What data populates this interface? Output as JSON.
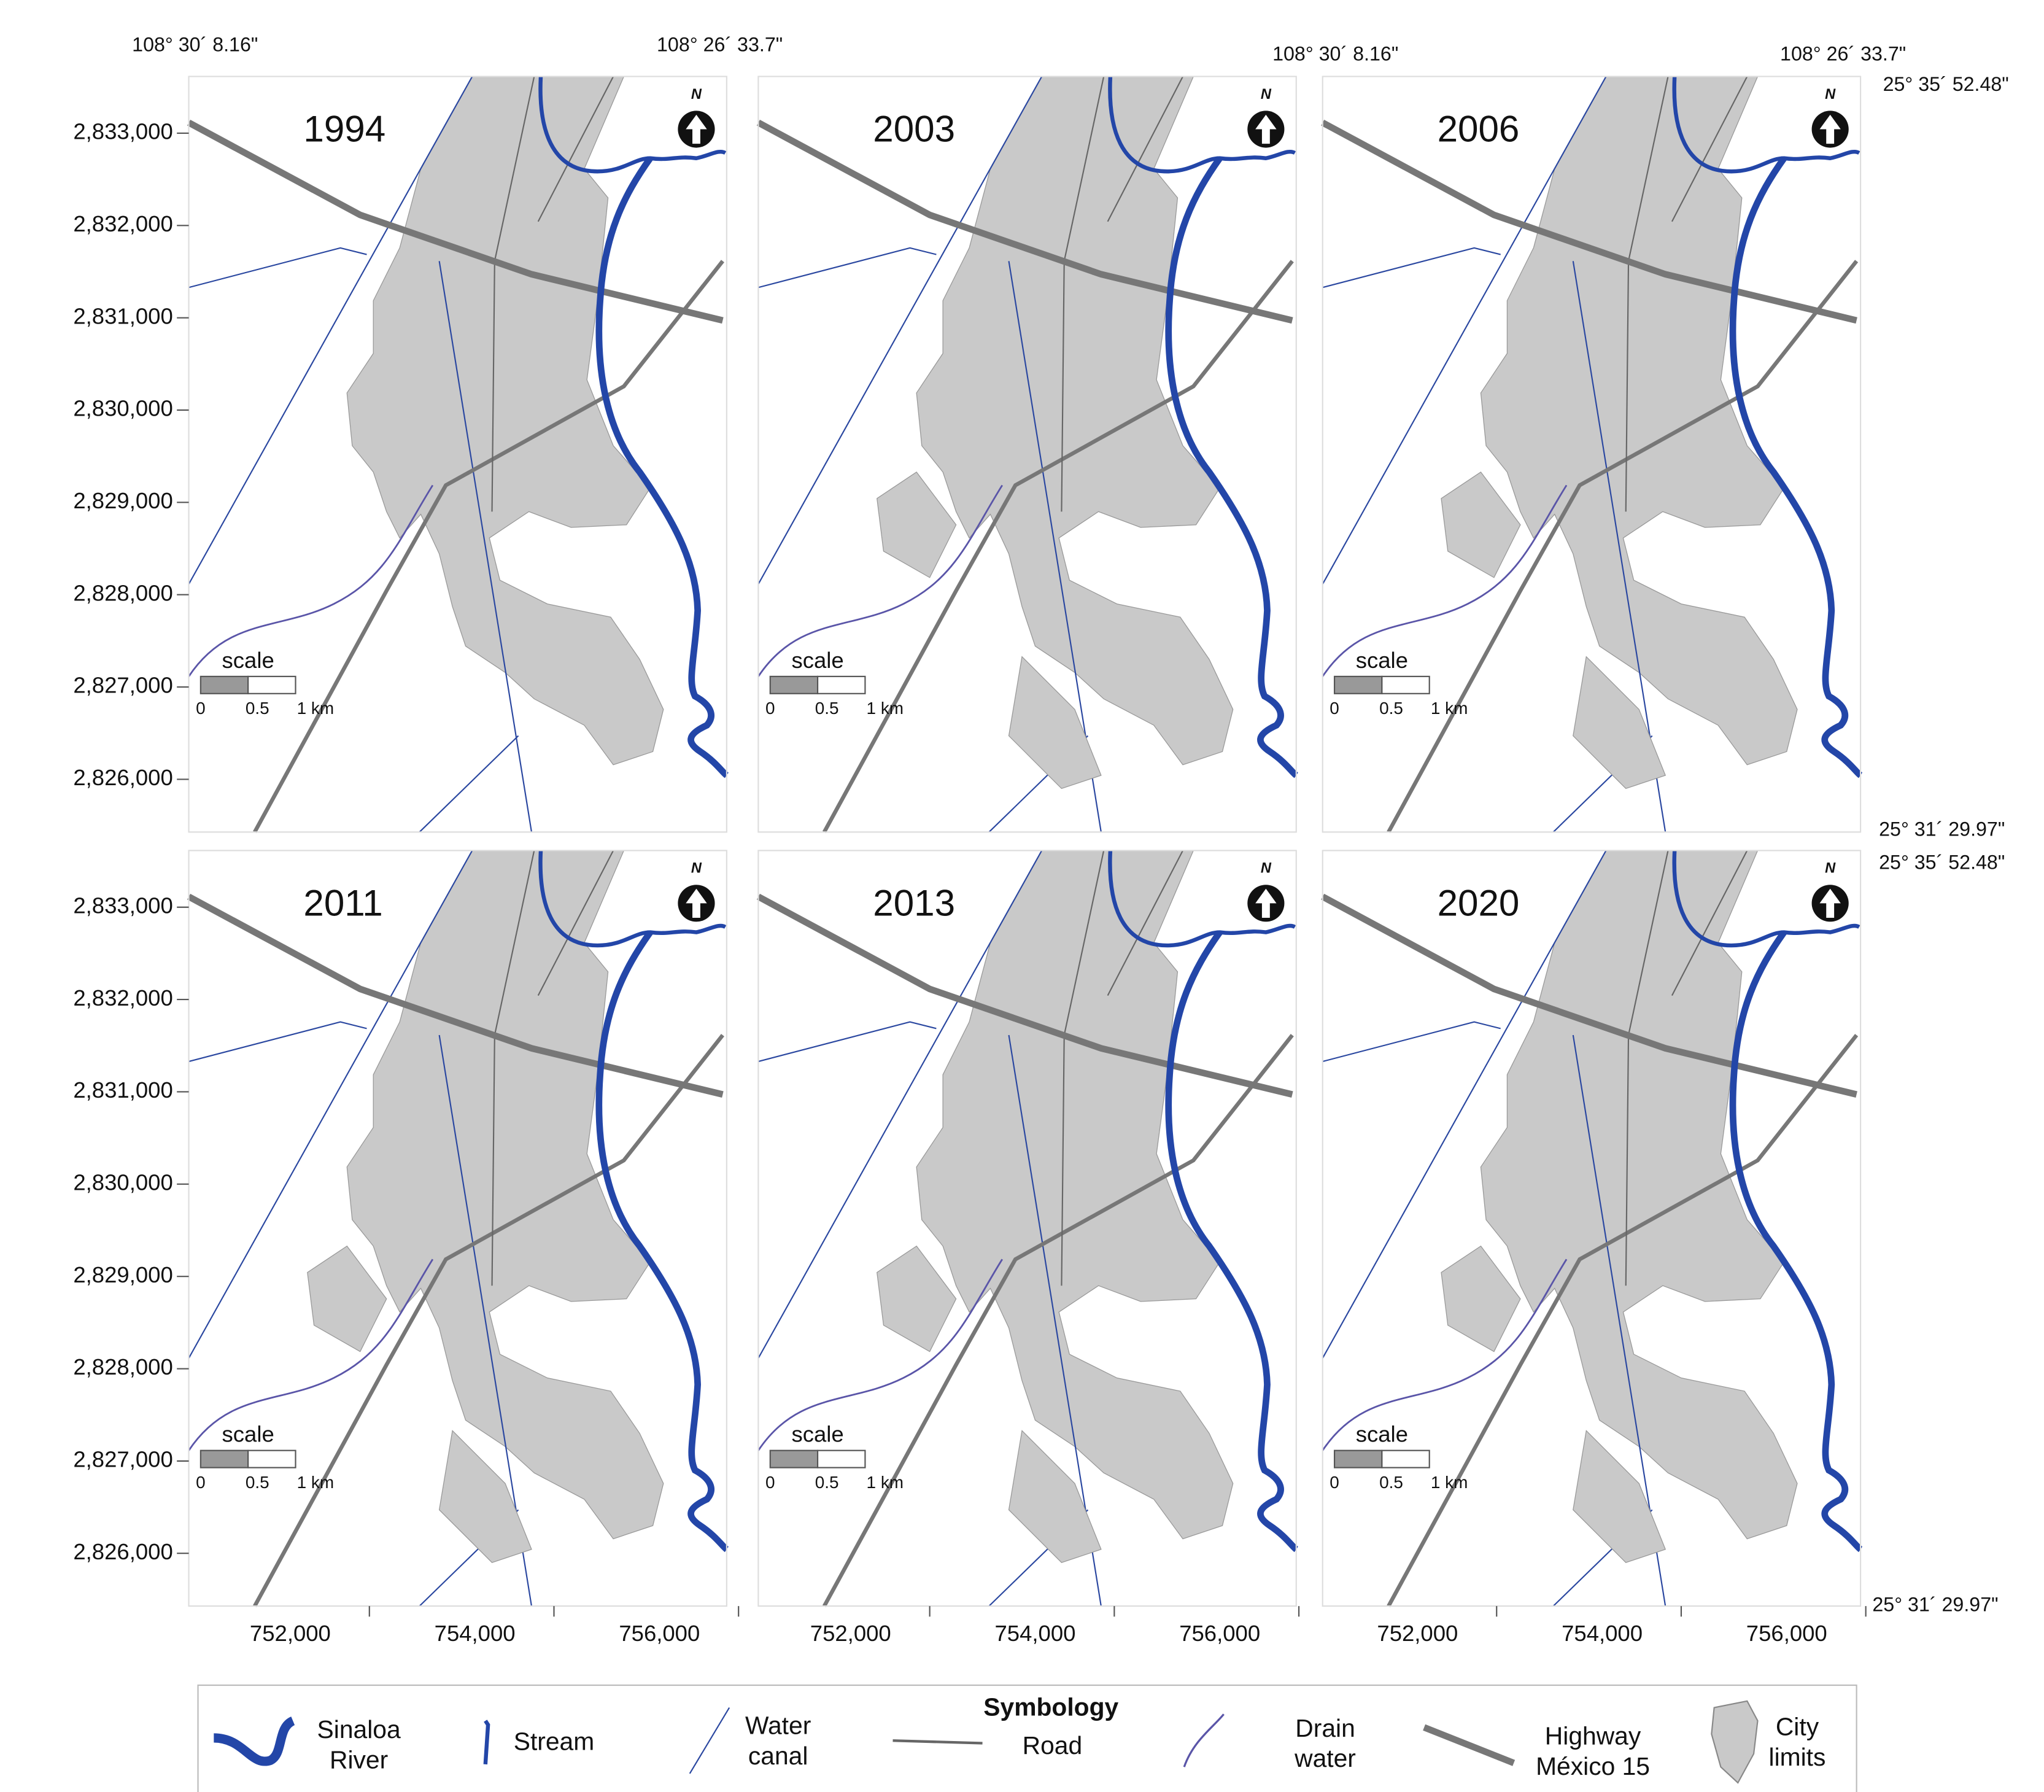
{
  "coordinates": {
    "top_row_left_lon": "108° 30´ 8.16\"",
    "top_row_right_lon": "108° 26´ 33.7\"",
    "right_panel_left_lon": "108° 30´ 8.16\"",
    "right_panel_right_lon": "108° 26´ 33.7\"",
    "top_row_north_lat": "25° 35´ 52.48\"",
    "top_row_south_lat": "25° 31´ 29.97\"",
    "bottom_row_north_lat": "25° 35´ 52.48\"",
    "bottom_row_south_lat": "25° 31´ 29.97\""
  },
  "panels": [
    {
      "year": "1994"
    },
    {
      "year": "2003"
    },
    {
      "year": "2006"
    },
    {
      "year": "2011"
    },
    {
      "year": "2013"
    },
    {
      "year": "2020"
    }
  ],
  "y_axis_labels": [
    "2,833,000",
    "2,832,000",
    "2,831,000",
    "2,830,000",
    "2,829,000",
    "2,828,000",
    "2,827,000",
    "2,826,000"
  ],
  "x_axis_labels": [
    "752,000",
    "754,000",
    "756,000"
  ],
  "north": "N",
  "scale": {
    "title": "scale",
    "labels": [
      "0",
      "0.5",
      "1 km"
    ]
  },
  "legend": {
    "title": "Symbology",
    "items": [
      {
        "lines": [
          "Sinaloa",
          "River"
        ]
      },
      {
        "lines": [
          "Stream"
        ]
      },
      {
        "lines": [
          "Water",
          "canal"
        ]
      },
      {
        "lines": [
          "Road"
        ]
      },
      {
        "lines": [
          "Drain",
          "water"
        ]
      },
      {
        "lines": [
          "Highway",
          "México 15"
        ]
      },
      {
        "lines": [
          "City",
          "limits"
        ]
      }
    ]
  }
}
